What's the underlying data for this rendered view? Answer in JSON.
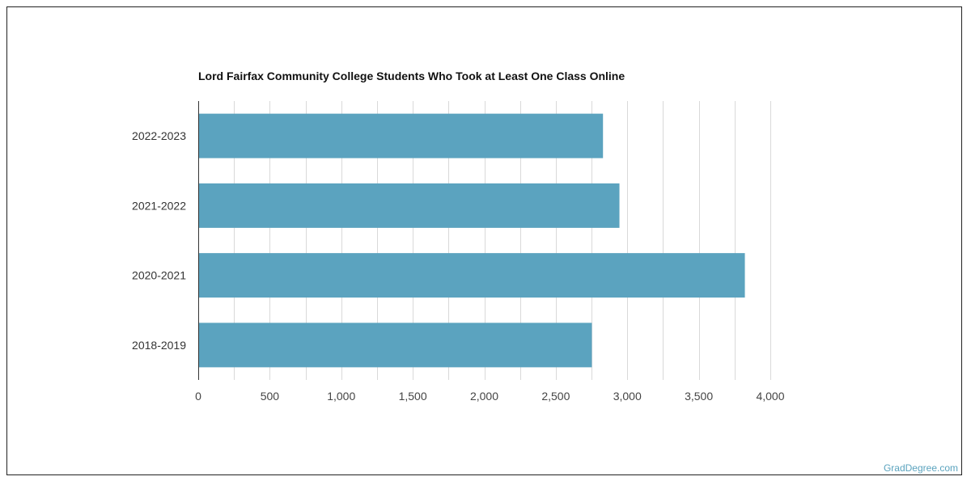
{
  "chart_data": {
    "type": "bar",
    "orientation": "horizontal",
    "title": "Lord Fairfax Community College Students Who Took at Least One Class Online",
    "categories": [
      "2022-2023",
      "2021-2022",
      "2020-2021",
      "2018-2019"
    ],
    "values": [
      2830,
      2945,
      3822,
      2752
    ],
    "xlim": [
      0,
      4000
    ],
    "xticks": [
      0,
      500,
      1000,
      1500,
      2000,
      2500,
      3000,
      3500,
      4000
    ],
    "xtick_labels": [
      "0",
      "500",
      "1,000",
      "1,500",
      "2,000",
      "2,500",
      "3,000",
      "3,500",
      "4,000"
    ],
    "xlabel": "",
    "ylabel": "",
    "grid": true,
    "bar_color": "#5ba3bf",
    "grid_color": "#d9d9d9"
  },
  "watermark": "GradDegree.com"
}
